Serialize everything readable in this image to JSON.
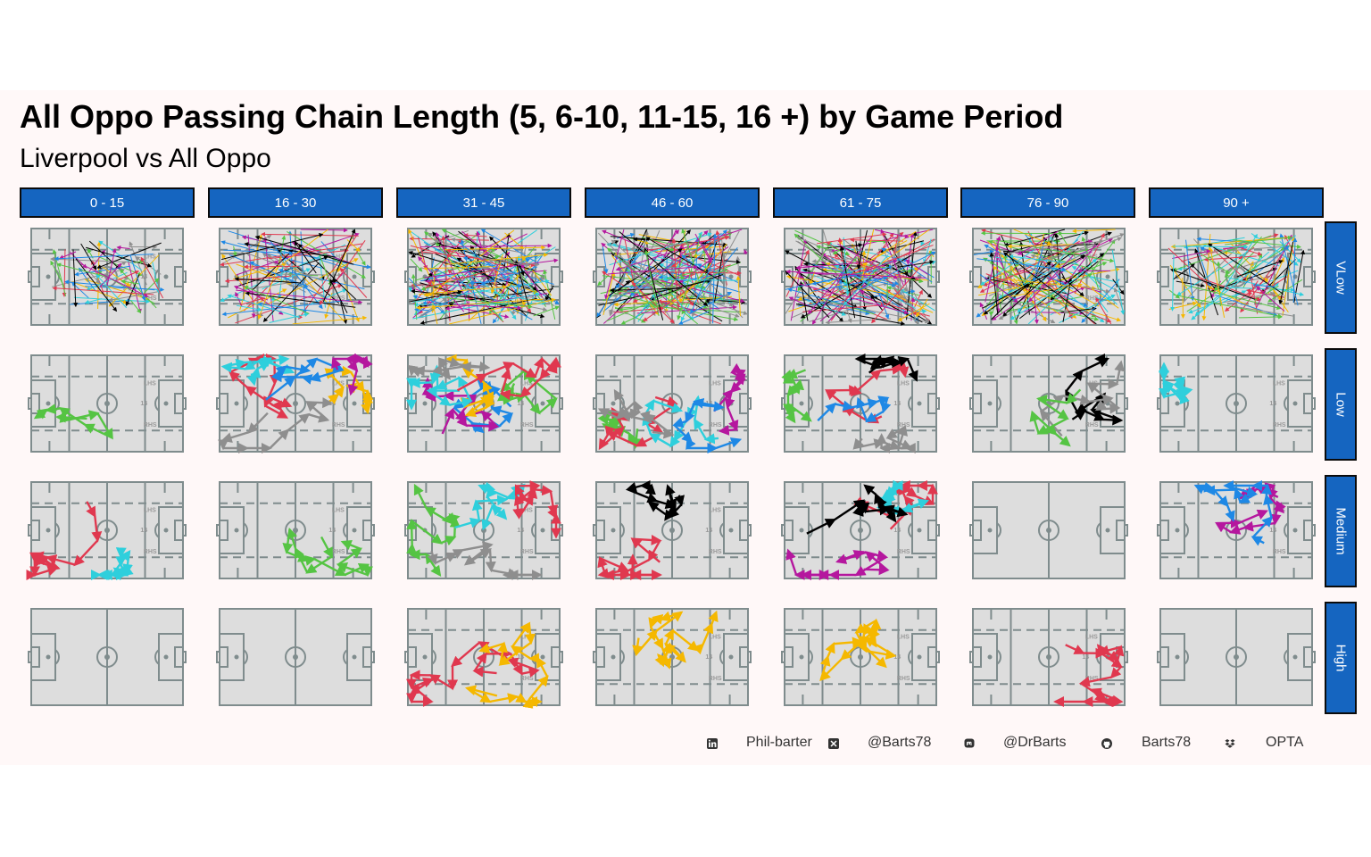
{
  "title": "All Oppo Passing Chain Length (5, 6-10, 11-15, 16 +) by Game Period",
  "subtitle": "Liverpool vs All Oppo",
  "colors": {
    "strip": "#1565c0",
    "pitch_fill": "#dddddd",
    "pitch_lines": "#7f8c8d",
    "palette": [
      "#e0384f",
      "#2ecfdc",
      "#55c443",
      "#f5b800",
      "#8e8e8e",
      "#1e88e5",
      "#b5179e",
      "#000000"
    ]
  },
  "chart_data": {
    "type": "facet-grid",
    "columns": [
      "0 - 15",
      "16 - 30",
      "31 - 45",
      "46 - 60",
      "61 - 75",
      "76 - 90",
      "90 +"
    ],
    "rows": [
      "VLow",
      "Low",
      "Medium",
      "High"
    ],
    "pitch_labels": {
      "upper": "LHS",
      "middle": "14",
      "lower": "RHS"
    },
    "chains": {
      "VLow": [
        {
          "col": "0 - 15",
          "count": 60,
          "spread": 0.75
        },
        {
          "col": "16 - 30",
          "count": 90,
          "spread": 1.0
        },
        {
          "col": "31 - 45",
          "count": 150,
          "spread": 1.0
        },
        {
          "col": "46 - 60",
          "count": 150,
          "spread": 1.0
        },
        {
          "col": "61 - 75",
          "count": 150,
          "spread": 1.0
        },
        {
          "col": "76 - 90",
          "count": 130,
          "spread": 1.0
        },
        {
          "col": "90 +",
          "count": 90,
          "spread": 0.9
        }
      ],
      "Low": [
        {
          "col": "0 - 15",
          "series": [
            {
              "color": "#55c443",
              "length": 9
            }
          ]
        },
        {
          "col": "16 - 30",
          "series": [
            {
              "color": "#e0384f",
              "length": 10
            },
            {
              "color": "#2ecfdc",
              "length": 10
            },
            {
              "color": "#f5b800",
              "length": 9
            },
            {
              "color": "#8e8e8e",
              "length": 10
            },
            {
              "color": "#1e88e5",
              "length": 8
            },
            {
              "color": "#b5179e",
              "length": 7
            }
          ]
        },
        {
          "col": "31 - 45",
          "series": [
            {
              "color": "#1e88e5",
              "length": 10
            },
            {
              "color": "#b5179e",
              "length": 10
            },
            {
              "color": "#f5b800",
              "length": 10
            },
            {
              "color": "#2ecfdc",
              "length": 10
            },
            {
              "color": "#55c443",
              "length": 10
            },
            {
              "color": "#e0384f",
              "length": 10
            },
            {
              "color": "#8e8e8e",
              "length": 9
            }
          ]
        },
        {
          "col": "46 - 60",
          "series": [
            {
              "color": "#55c443",
              "length": 10
            },
            {
              "color": "#e0384f",
              "length": 10
            },
            {
              "color": "#2ecfdc",
              "length": 10
            },
            {
              "color": "#8e8e8e",
              "length": 10
            },
            {
              "color": "#b5179e",
              "length": 9
            },
            {
              "color": "#1e88e5",
              "length": 8
            }
          ]
        },
        {
          "col": "61 - 75",
          "series": [
            {
              "color": "#55c443",
              "length": 10
            },
            {
              "color": "#e0384f",
              "length": 10
            },
            {
              "color": "#8e8e8e",
              "length": 9
            },
            {
              "color": "#000000",
              "length": 8
            },
            {
              "color": "#1e88e5",
              "length": 7
            }
          ]
        },
        {
          "col": "76 - 90",
          "series": [
            {
              "color": "#000000",
              "length": 10
            },
            {
              "color": "#8e8e8e",
              "length": 9
            },
            {
              "color": "#55c443",
              "length": 7
            }
          ]
        },
        {
          "col": "90 +",
          "series": [
            {
              "color": "#2ecfdc",
              "length": 10
            }
          ]
        }
      ],
      "Medium": [
        {
          "col": "0 - 15",
          "series": [
            {
              "color": "#2ecfdc",
              "length": 14
            },
            {
              "color": "#e0384f",
              "length": 13
            }
          ]
        },
        {
          "col": "16 - 30",
          "series": [
            {
              "color": "#55c443",
              "length": 13
            }
          ]
        },
        {
          "col": "31 - 45",
          "series": [
            {
              "color": "#55c443",
              "length": 13
            },
            {
              "color": "#2ecfdc",
              "length": 12
            },
            {
              "color": "#e0384f",
              "length": 12
            },
            {
              "color": "#8e8e8e",
              "length": 11
            }
          ]
        },
        {
          "col": "46 - 60",
          "series": [
            {
              "color": "#e0384f",
              "length": 13
            },
            {
              "color": "#000000",
              "length": 12
            }
          ]
        },
        {
          "col": "61 - 75",
          "series": [
            {
              "color": "#e0384f",
              "length": 13
            },
            {
              "color": "#2ecfdc",
              "length": 14
            },
            {
              "color": "#000000",
              "length": 13
            },
            {
              "color": "#b5179e",
              "length": 12
            }
          ]
        },
        {
          "col": "76 - 90",
          "series": []
        },
        {
          "col": "90 +",
          "series": [
            {
              "color": "#b5179e",
              "length": 13
            },
            {
              "color": "#1e88e5",
              "length": 14
            }
          ]
        }
      ],
      "High": [
        {
          "col": "0 - 15",
          "series": []
        },
        {
          "col": "16 - 30",
          "series": []
        },
        {
          "col": "31 - 45",
          "series": [
            {
              "color": "#e0384f",
              "length": 17
            },
            {
              "color": "#f5b800",
              "length": 16
            }
          ]
        },
        {
          "col": "46 - 60",
          "series": [
            {
              "color": "#f5b800",
              "length": 18
            }
          ]
        },
        {
          "col": "61 - 75",
          "series": [
            {
              "color": "#f5b800",
              "length": 16
            }
          ]
        },
        {
          "col": "76 - 90",
          "series": [
            {
              "color": "#e0384f",
              "length": 17
            }
          ]
        },
        {
          "col": "90 +",
          "series": []
        }
      ]
    }
  },
  "caption": [
    {
      "icon": "linkedin-icon",
      "text": "Phil-barter"
    },
    {
      "icon": "x-icon",
      "text": "@Barts78"
    },
    {
      "icon": "mastodon-icon",
      "text": "@DrBarts"
    },
    {
      "icon": "github-icon",
      "text": "Barts78"
    },
    {
      "icon": "dropbox-icon",
      "text": "OPTA"
    }
  ]
}
